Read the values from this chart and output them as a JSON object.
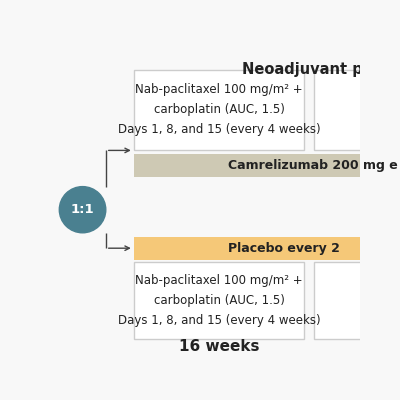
{
  "title": "Neoadjuvant p",
  "bg_color": "#f8f8f8",
  "circle_color": "#4a8090",
  "circle_text": "1:1",
  "circle_text_color": "#ffffff",
  "box1_text": "Nab-paclitaxel 100 mg/m² +\ncarboplatin (AUC, 1.5)\nDays 1, 8, and 15 (every 4 weeks)",
  "box2_text": "Nab-paclitaxel 100 mg/m² +\ncarboplatin (AUC, 1.5)\nDays 1, 8, and 15 (every 4 weeks)",
  "camrel_text": "Camrelizumab 200 mg e",
  "placebo_text": "Placebo every 2",
  "weeks_text": "16 weeks",
  "box_border_color": "#cccccc",
  "box_fill_color": "#ffffff",
  "camrel_fill_color": "#cec9b4",
  "placebo_fill_color": "#f5c878",
  "line_color": "#444444",
  "font_color": "#222222",
  "font_size_box": 8.5,
  "font_size_bar": 9.0,
  "font_size_title": 10.5,
  "font_size_weeks": 11.0,
  "font_size_circle": 9.5
}
